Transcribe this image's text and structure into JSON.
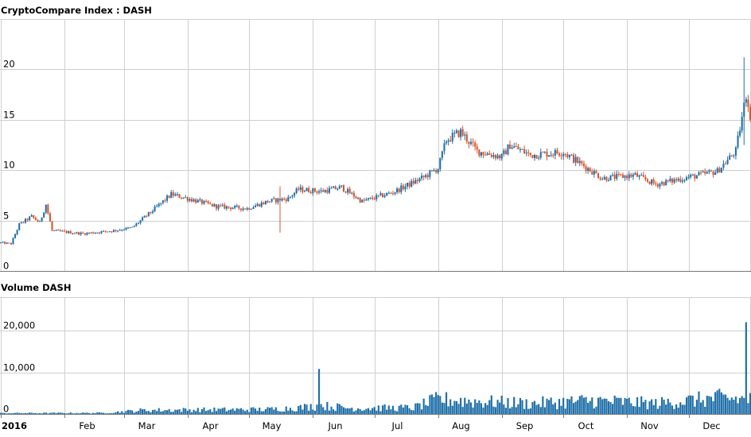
{
  "chart_data": [
    {
      "type": "candlestick",
      "title": "CryptoCompare Index : DASH",
      "ylim": [
        0,
        25
      ],
      "yticks": [
        {
          "value": 0,
          "label": "0"
        },
        {
          "value": 5,
          "label": "5"
        },
        {
          "value": 10,
          "label": "10"
        },
        {
          "value": 15,
          "label": "15"
        },
        {
          "value": 20,
          "label": "20"
        }
      ],
      "x_range": [
        "2016-01-01",
        "2016-12-31"
      ],
      "x_ticks": [
        {
          "date": "2016-01-01",
          "label": "2016"
        },
        {
          "date": "2016-02-01",
          "label": "Feb"
        },
        {
          "date": "2016-03-01",
          "label": "Mar"
        },
        {
          "date": "2016-04-01",
          "label": "Apr"
        },
        {
          "date": "2016-05-01",
          "label": "May"
        },
        {
          "date": "2016-06-01",
          "label": "Jun"
        },
        {
          "date": "2016-07-01",
          "label": "Jul"
        },
        {
          "date": "2016-08-01",
          "label": "Aug"
        },
        {
          "date": "2016-09-01",
          "label": "Sep"
        },
        {
          "date": "2016-10-01",
          "label": "Oct"
        },
        {
          "date": "2016-11-01",
          "label": "Nov"
        },
        {
          "date": "2016-12-01",
          "label": "Dec"
        }
      ],
      "up_color": "#1f6fa8",
      "down_color": "#d9532c",
      "price_keypoints": [
        {
          "date": "2016-01-01",
          "close": 2.8
        },
        {
          "date": "2016-01-06",
          "close": 2.7
        },
        {
          "date": "2016-01-10",
          "close": 4.6
        },
        {
          "date": "2016-01-16",
          "close": 5.4
        },
        {
          "date": "2016-01-20",
          "close": 4.8
        },
        {
          "date": "2016-01-23",
          "close": 6.6
        },
        {
          "date": "2016-01-26",
          "close": 4.0
        },
        {
          "date": "2016-02-10",
          "close": 3.7
        },
        {
          "date": "2016-02-25",
          "close": 4.0
        },
        {
          "date": "2016-03-05",
          "close": 4.3
        },
        {
          "date": "2016-03-15",
          "close": 6.0
        },
        {
          "date": "2016-03-24",
          "close": 7.6
        },
        {
          "date": "2016-04-01",
          "close": 7.2
        },
        {
          "date": "2016-04-15",
          "close": 6.4
        },
        {
          "date": "2016-04-30",
          "close": 6.2
        },
        {
          "date": "2016-05-10",
          "close": 6.9
        },
        {
          "date": "2016-05-20",
          "close": 7.2
        },
        {
          "date": "2016-05-25",
          "close": 8.1
        },
        {
          "date": "2016-06-05",
          "close": 7.9
        },
        {
          "date": "2016-06-15",
          "close": 8.3
        },
        {
          "date": "2016-06-25",
          "close": 6.9
        },
        {
          "date": "2016-07-10",
          "close": 7.8
        },
        {
          "date": "2016-07-25",
          "close": 9.3
        },
        {
          "date": "2016-08-01",
          "close": 10.2
        },
        {
          "date": "2016-08-05",
          "close": 13.0
        },
        {
          "date": "2016-08-12",
          "close": 13.8
        },
        {
          "date": "2016-08-20",
          "close": 11.9
        },
        {
          "date": "2016-09-01",
          "close": 11.3
        },
        {
          "date": "2016-09-05",
          "close": 12.5
        },
        {
          "date": "2016-09-15",
          "close": 11.5
        },
        {
          "date": "2016-10-01",
          "close": 11.8
        },
        {
          "date": "2016-10-20",
          "close": 9.2
        },
        {
          "date": "2016-11-05",
          "close": 9.5
        },
        {
          "date": "2016-11-15",
          "close": 8.6
        },
        {
          "date": "2016-12-01",
          "close": 9.3
        },
        {
          "date": "2016-12-15",
          "close": 9.9
        },
        {
          "date": "2016-12-24",
          "close": 11.9
        },
        {
          "date": "2016-12-29",
          "close": 17.5
        },
        {
          "date": "2016-12-31",
          "close": 15.5
        }
      ],
      "notable_wicks": [
        {
          "date": "2016-05-16",
          "low": 3.8,
          "high": 8.4
        },
        {
          "date": "2016-12-28",
          "low": 12.5,
          "high": 21.2
        }
      ]
    },
    {
      "type": "bar",
      "title": "Volume DASH",
      "ylim": [
        0,
        28000
      ],
      "yticks": [
        {
          "value": 0,
          "label": "0"
        },
        {
          "value": 10000,
          "label": "10,000"
        },
        {
          "value": 20000,
          "label": "20,000"
        }
      ],
      "x_range": [
        "2016-01-01",
        "2016-12-31"
      ],
      "bar_color": "#1f6fa8",
      "volume_keypoints": [
        {
          "date": "2016-01-01",
          "volume": 200
        },
        {
          "date": "2016-02-20",
          "volume": 250
        },
        {
          "date": "2016-03-10",
          "volume": 900
        },
        {
          "date": "2016-04-10",
          "volume": 1000
        },
        {
          "date": "2016-05-10",
          "volume": 1100
        },
        {
          "date": "2016-05-25",
          "volume": 1500
        },
        {
          "date": "2016-06-05",
          "volume": 2000
        },
        {
          "date": "2016-06-20",
          "volume": 1400
        },
        {
          "date": "2016-07-20",
          "volume": 1500
        },
        {
          "date": "2016-08-01",
          "volume": 3500
        },
        {
          "date": "2016-08-20",
          "volume": 3000
        },
        {
          "date": "2016-09-15",
          "volume": 2500
        },
        {
          "date": "2016-10-15",
          "volume": 3200
        },
        {
          "date": "2016-11-15",
          "volume": 2500
        },
        {
          "date": "2016-12-15",
          "volume": 3800
        },
        {
          "date": "2016-12-31",
          "volume": 3500
        }
      ],
      "notable_spikes": [
        {
          "date": "2016-06-04",
          "volume": 10800
        },
        {
          "date": "2016-12-29",
          "volume": 22000
        }
      ]
    }
  ]
}
